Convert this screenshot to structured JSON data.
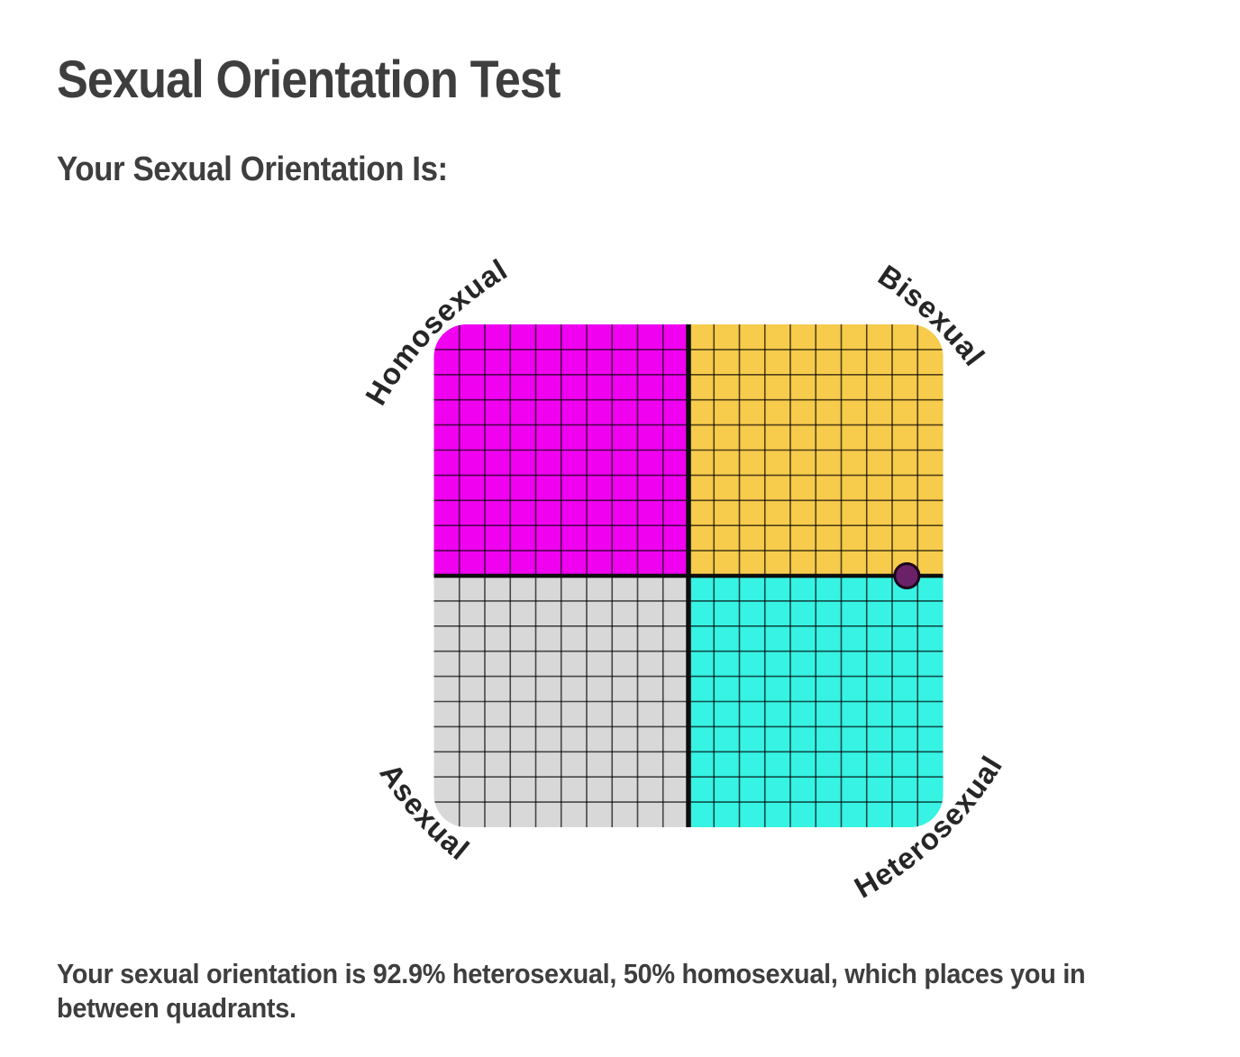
{
  "page": {
    "title": "Sexual Orientation Test",
    "subtitle": "Your Sexual Orientation Is:",
    "result_text": "Your sexual orientation is 92.9% heterosexual, 50% homosexual, which places you in between quadrants."
  },
  "chart_data": {
    "type": "scatter",
    "subtype": "quadrant-grid",
    "quadrants": [
      {
        "position": "top-left",
        "label": "Homosexual",
        "color": "#F001F0"
      },
      {
        "position": "top-right",
        "label": "Bisexual",
        "color": "#F7CB4C"
      },
      {
        "position": "bottom-left",
        "label": "Asexual",
        "color": "#D8D8D8"
      },
      {
        "position": "bottom-right",
        "label": "Heterosexual",
        "color": "#36F3E3"
      }
    ],
    "grid": {
      "columns": 20,
      "rows": 20,
      "on": true,
      "line_color": "#000000",
      "line_opacity": 0.68
    },
    "axis_line_color": "#0d0d0d",
    "point": {
      "heterosexual_pct": 92.9,
      "homosexual_pct": 50,
      "color": "#6B2168",
      "outline": "#1c041c"
    }
  }
}
